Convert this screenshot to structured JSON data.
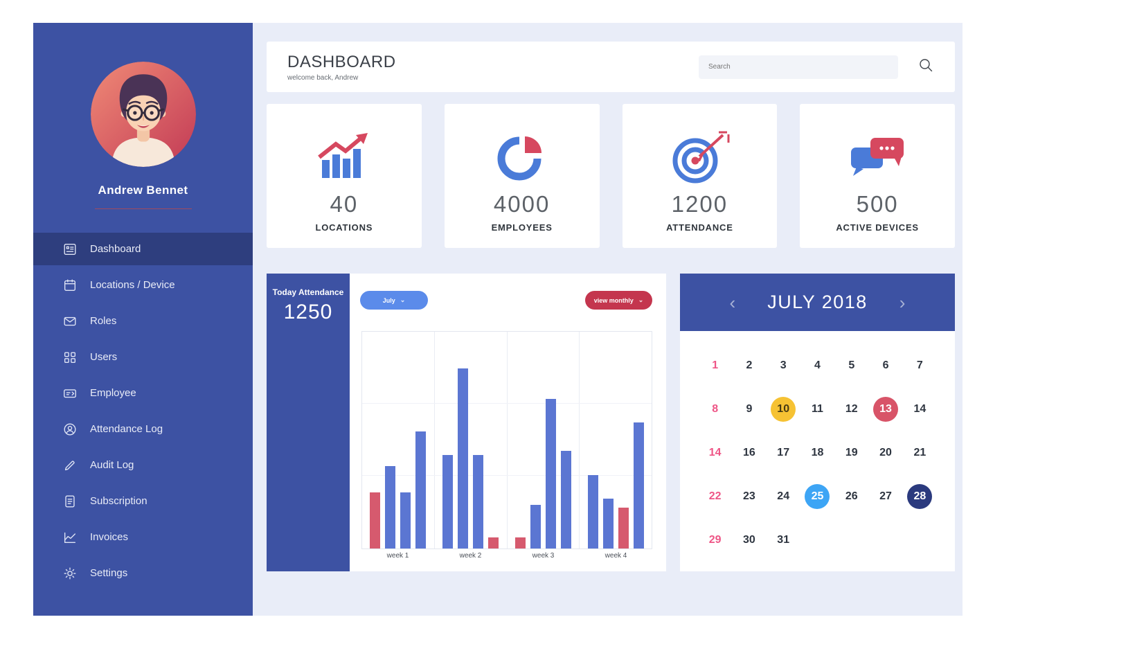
{
  "colors": {
    "sidebar": "#3d52a3",
    "sidebar_active": "#2e3e7e",
    "page_bg": "#e9edf8",
    "accent_blue": "#4a7bd8",
    "accent_red": "#d6485f",
    "bar_blue": "#5b76d2",
    "bar_red": "#d65a6e",
    "pink_day": "#ee5586",
    "badge_yellow": "#f6c233",
    "badge_red": "#d85468",
    "badge_blue": "#3da5f5",
    "badge_navy": "#2b3a7e"
  },
  "sidebar": {
    "user_name": "Andrew Bennet",
    "items": [
      {
        "label": "Dashboard",
        "icon": "dashboard-icon",
        "active": true
      },
      {
        "label": "Locations / Device",
        "icon": "device-calendar-icon",
        "active": false
      },
      {
        "label": "Roles",
        "icon": "envelope-icon",
        "active": false
      },
      {
        "label": "Users",
        "icon": "users-grid-icon",
        "active": false
      },
      {
        "label": "Employee",
        "icon": "id-card-icon",
        "active": false
      },
      {
        "label": "Attendance Log",
        "icon": "person-circle-icon",
        "active": false
      },
      {
        "label": "Audit Log",
        "icon": "pencil-icon",
        "active": false
      },
      {
        "label": "Subscription",
        "icon": "document-icon",
        "active": false
      },
      {
        "label": "Invoices",
        "icon": "line-chart-icon",
        "active": false
      },
      {
        "label": "Settings",
        "icon": "gear-icon",
        "active": false
      }
    ]
  },
  "header": {
    "title": "DASHBOARD",
    "subtitle": "welcome back, Andrew",
    "search_placeholder": "Search"
  },
  "stats": [
    {
      "value": "40",
      "label": "LOCATIONS",
      "icon": "bar-chart-icon"
    },
    {
      "value": "4000",
      "label": "EMPLOYEES",
      "icon": "pie-chart-icon"
    },
    {
      "value": "1200",
      "label": "ATTENDANCE",
      "icon": "target-icon"
    },
    {
      "value": "500",
      "label": "ACTIVE DEVICES",
      "icon": "chat-bubbles-icon"
    }
  ],
  "attendance_panel": {
    "title": "Today Attendance",
    "value": "1250",
    "month_filter": "July",
    "month_chevron": "⌄",
    "view_button": "view monthly",
    "view_chevron": "⌄"
  },
  "chart_data": {
    "type": "bar",
    "categories": [
      "week 1",
      "week 2",
      "week 3",
      "week 4"
    ],
    "values_scale": "relative-percent-of-plot-height",
    "ylim": [
      0,
      100
    ],
    "grid": true,
    "groups": [
      {
        "category": "week 1",
        "bars": [
          {
            "value": 26,
            "color": "red"
          },
          {
            "value": 38,
            "color": "blue"
          },
          {
            "value": 26,
            "color": "blue"
          },
          {
            "value": 54,
            "color": "blue"
          }
        ]
      },
      {
        "category": "week 2",
        "bars": [
          {
            "value": 43,
            "color": "blue"
          },
          {
            "value": 83,
            "color": "blue"
          },
          {
            "value": 43,
            "color": "blue"
          },
          {
            "value": 5,
            "color": "red"
          }
        ]
      },
      {
        "category": "week 3",
        "bars": [
          {
            "value": 5,
            "color": "red"
          },
          {
            "value": 20,
            "color": "blue"
          },
          {
            "value": 69,
            "color": "blue"
          },
          {
            "value": 45,
            "color": "blue"
          }
        ]
      },
      {
        "category": "week 4",
        "bars": [
          {
            "value": 34,
            "color": "blue"
          },
          {
            "value": 23,
            "color": "blue"
          },
          {
            "value": 19,
            "color": "red"
          },
          {
            "value": 58,
            "color": "blue"
          }
        ]
      }
    ]
  },
  "calendar": {
    "title": "JULY 2018",
    "prev_label": "‹",
    "next_label": "›",
    "weeks": [
      [
        {
          "d": "1",
          "pink": true
        },
        {
          "d": "2"
        },
        {
          "d": "3"
        },
        {
          "d": "4"
        },
        {
          "d": "5"
        },
        {
          "d": "6"
        },
        {
          "d": "7"
        }
      ],
      [
        {
          "d": "8",
          "pink": true
        },
        {
          "d": "9"
        },
        {
          "d": "10",
          "badge": "yellow"
        },
        {
          "d": "11"
        },
        {
          "d": "12"
        },
        {
          "d": "13",
          "badge": "red"
        },
        {
          "d": "14"
        }
      ],
      [
        {
          "d": "14",
          "pink": true
        },
        {
          "d": "16"
        },
        {
          "d": "17"
        },
        {
          "d": "18"
        },
        {
          "d": "19"
        },
        {
          "d": "20"
        },
        {
          "d": "21"
        }
      ],
      [
        {
          "d": "22",
          "pink": true
        },
        {
          "d": "23"
        },
        {
          "d": "24"
        },
        {
          "d": "25",
          "badge": "blue"
        },
        {
          "d": "26"
        },
        {
          "d": "27"
        },
        {
          "d": "28",
          "badge": "navy"
        }
      ],
      [
        {
          "d": "29",
          "pink": true
        },
        {
          "d": "30"
        },
        {
          "d": "31"
        }
      ]
    ]
  }
}
